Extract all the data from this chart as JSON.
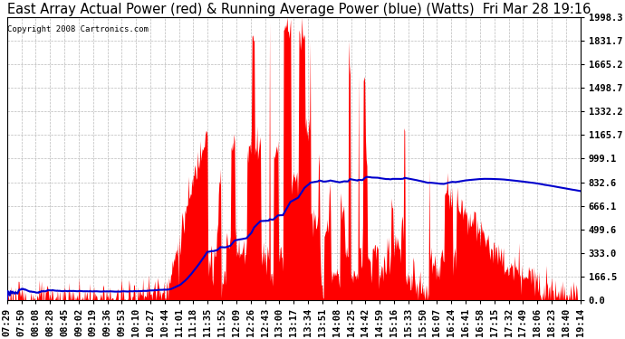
{
  "title": "East Array Actual Power (red) & Running Average Power (blue) (Watts)  Fri Mar 28 19:16",
  "copyright": "Copyright 2008 Cartronics.com",
  "y_ticks": [
    0.0,
    166.5,
    333.0,
    499.6,
    666.1,
    832.6,
    999.1,
    1165.7,
    1332.2,
    1498.7,
    1665.2,
    1831.7,
    1998.3
  ],
  "y_max": 1998.3,
  "x_labels": [
    "07:29",
    "07:50",
    "08:08",
    "08:28",
    "08:45",
    "09:02",
    "09:19",
    "09:36",
    "09:53",
    "10:10",
    "10:27",
    "10:44",
    "11:01",
    "11:18",
    "11:35",
    "11:52",
    "12:09",
    "12:26",
    "12:43",
    "13:00",
    "13:17",
    "13:34",
    "13:51",
    "14:08",
    "14:25",
    "14:42",
    "14:59",
    "15:16",
    "15:33",
    "15:50",
    "16:07",
    "16:24",
    "16:41",
    "16:58",
    "17:15",
    "17:32",
    "17:49",
    "18:06",
    "18:23",
    "18:40",
    "19:14"
  ],
  "background_color": "#ffffff",
  "plot_bg_color": "#ffffff",
  "grid_color": "#bbbbbb",
  "red_color": "#ff0000",
  "blue_color": "#0000cc",
  "title_fontsize": 10.5,
  "tick_fontsize": 7.5
}
